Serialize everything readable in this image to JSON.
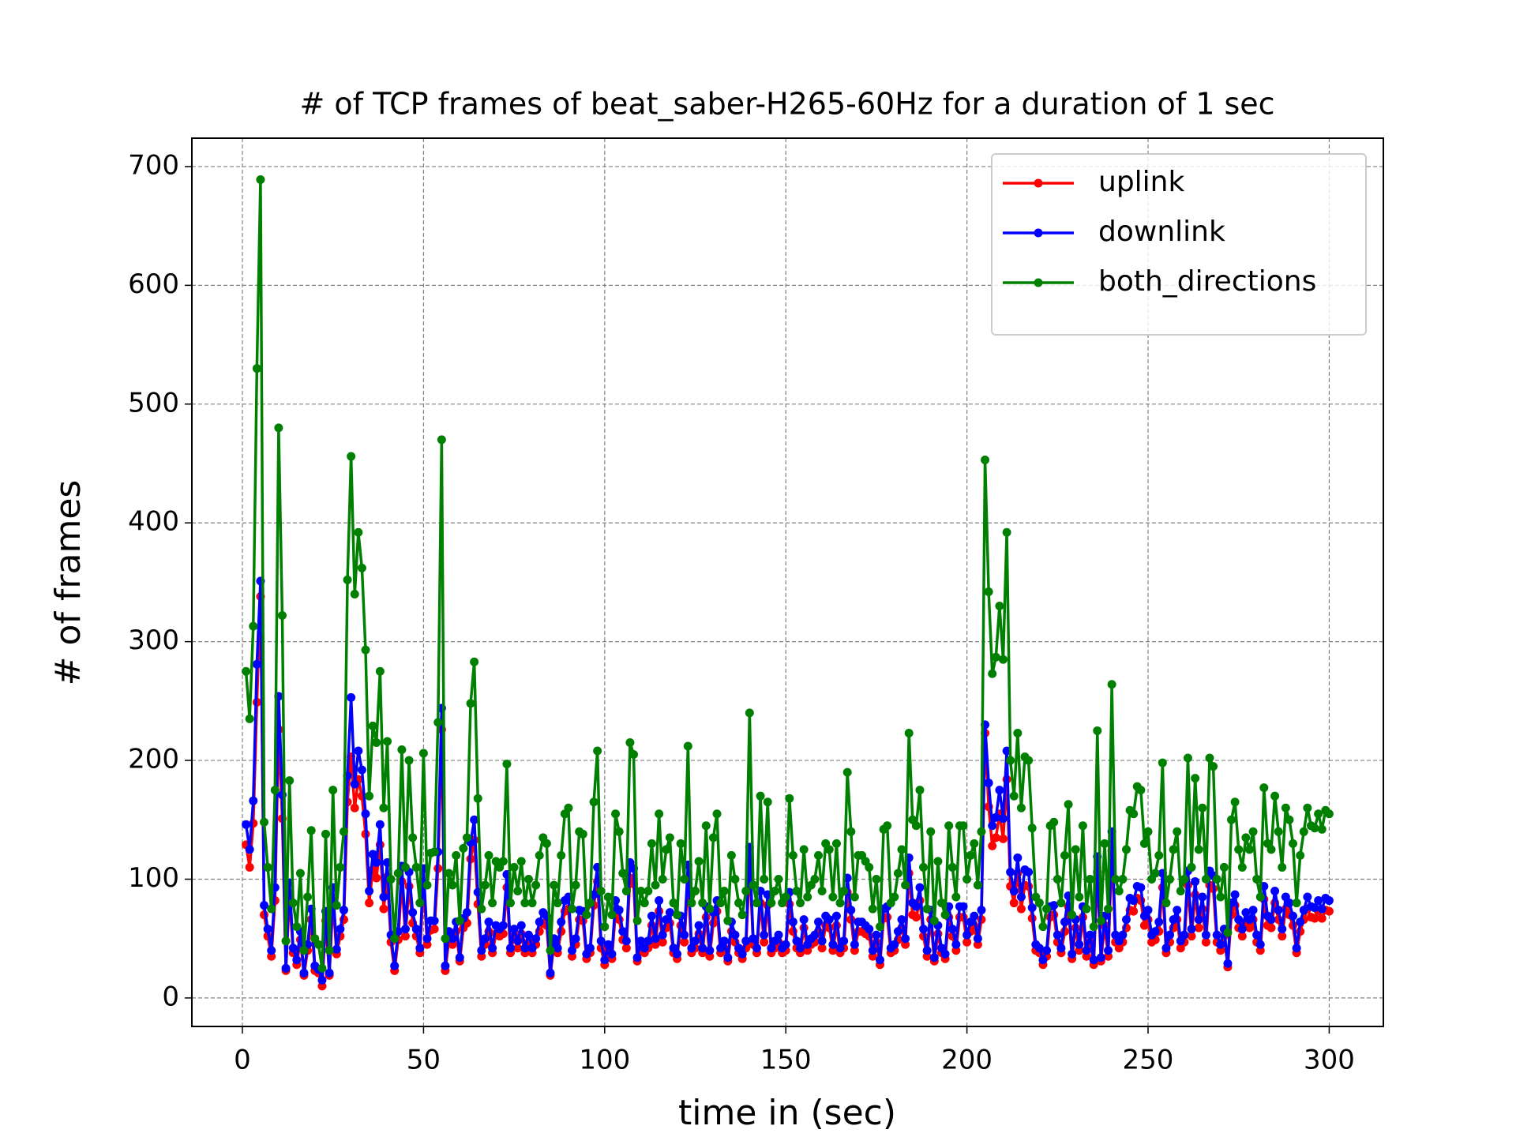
{
  "chart_data": {
    "type": "line",
    "title": "# of TCP frames of beat_saber-H265-60Hz for a duration of 1 sec",
    "xlabel": "time in (sec)",
    "ylabel": "# of frames",
    "x": [
      1,
      2,
      3,
      4,
      5,
      6,
      7,
      8,
      9,
      10,
      11,
      12,
      13,
      14,
      15,
      16,
      17,
      18,
      19,
      20,
      21,
      22,
      23,
      24,
      25,
      26,
      27,
      28,
      29,
      30,
      31,
      32,
      33,
      34,
      35,
      36,
      37,
      38,
      39,
      40,
      41,
      42,
      43,
      44,
      45,
      46,
      47,
      48,
      49,
      50,
      51,
      52,
      53,
      54,
      55,
      56,
      57,
      58,
      59,
      60,
      61,
      62,
      63,
      64,
      65,
      66,
      67,
      68,
      69,
      70,
      71,
      72,
      73,
      74,
      75,
      76,
      77,
      78,
      79,
      80,
      81,
      82,
      83,
      84,
      85,
      86,
      87,
      88,
      89,
      90,
      91,
      92,
      93,
      94,
      95,
      96,
      97,
      98,
      99,
      100,
      101,
      102,
      103,
      104,
      105,
      106,
      107,
      108,
      109,
      110,
      111,
      112,
      113,
      114,
      115,
      116,
      117,
      118,
      119,
      120,
      121,
      122,
      123,
      124,
      125,
      126,
      127,
      128,
      129,
      130,
      131,
      132,
      133,
      134,
      135,
      136,
      137,
      138,
      139,
      140,
      141,
      142,
      143,
      144,
      145,
      146,
      147,
      148,
      149,
      150,
      151,
      152,
      153,
      154,
      155,
      156,
      157,
      158,
      159,
      160,
      161,
      162,
      163,
      164,
      165,
      166,
      167,
      168,
      169,
      170,
      171,
      172,
      173,
      174,
      175,
      176,
      177,
      178,
      179,
      180,
      181,
      182,
      183,
      184,
      185,
      186,
      187,
      188,
      189,
      190,
      191,
      192,
      193,
      194,
      195,
      196,
      197,
      198,
      199,
      200,
      201,
      202,
      203,
      204,
      205,
      206,
      207,
      208,
      209,
      210,
      211,
      212,
      213,
      214,
      215,
      216,
      217,
      218,
      219,
      220,
      221,
      222,
      223,
      224,
      225,
      226,
      227,
      228,
      229,
      230,
      231,
      232,
      233,
      234,
      235,
      236,
      237,
      238,
      239,
      240,
      241,
      242,
      243,
      244,
      245,
      246,
      247,
      248,
      249,
      250,
      251,
      252,
      253,
      254,
      255,
      256,
      257,
      258,
      259,
      260,
      261,
      262,
      263,
      264,
      265,
      266,
      267,
      268,
      269,
      270,
      271,
      272,
      273,
      274,
      275,
      276,
      277,
      278,
      279,
      280,
      281,
      282,
      283,
      284,
      285,
      286,
      287,
      288,
      289,
      290,
      291,
      292,
      293,
      294,
      295,
      296,
      297,
      298,
      299,
      300
    ],
    "series": [
      {
        "name": "uplink",
        "color": "#ff0000",
        "values": [
          129,
          110,
          147,
          249,
          338,
          70,
          52,
          35,
          82,
          226,
          151,
          23,
          86,
          38,
          28,
          49,
          19,
          40,
          66,
          23,
          21,
          10,
          65,
          19,
          82,
          37,
          52,
          66,
          165,
          203,
          160,
          184,
          170,
          138,
          80,
          108,
          101,
          129,
          75,
          102,
          47,
          23,
          49,
          98,
          52,
          94,
          63,
          52,
          38,
          97,
          45,
          57,
          58,
          109,
          226,
          23,
          49,
          45,
          56,
          31,
          59,
          63,
          117,
          133,
          79,
          35,
          45,
          56,
          38,
          54,
          52,
          54,
          93,
          38,
          52,
          42,
          54,
          38,
          47,
          38,
          45,
          56,
          63,
          61,
          19,
          45,
          38,
          56,
          73,
          75,
          35,
          45,
          66,
          65,
          33,
          38,
          78,
          98,
          42,
          28,
          40,
          33,
          73,
          66,
          49,
          42,
          101,
          96,
          31,
          42,
          38,
          42,
          61,
          45,
          73,
          47,
          59,
          63,
          38,
          33,
          61,
          47,
          100,
          38,
          42,
          54,
          38,
          68,
          35,
          63,
          73,
          38,
          42,
          31,
          56,
          47,
          38,
          33,
          42,
          113,
          45,
          38,
          80,
          47,
          78,
          38,
          42,
          47,
          38,
          40,
          79,
          56,
          42,
          38,
          59,
          40,
          45,
          47,
          56,
          42,
          61,
          59,
          40,
          61,
          38,
          42,
          89,
          66,
          40,
          56,
          56,
          54,
          52,
          35,
          47,
          28,
          67,
          68,
          38,
          40,
          49,
          59,
          45,
          105,
          70,
          68,
          82,
          52,
          35,
          66,
          31,
          54,
          38,
          33,
          68,
          52,
          40,
          68,
          68,
          47,
          56,
          61,
          45,
          66,
          223,
          161,
          128,
          135,
          155,
          134,
          184,
          94,
          80,
          105,
          75,
          95,
          94,
          67,
          40,
          38,
          28,
          35,
          68,
          70,
          47,
          38,
          56,
          77,
          33,
          59,
          40,
          68,
          35,
          47,
          28,
          106,
          31,
          61,
          35,
          124,
          47,
          42,
          47,
          59,
          74,
          73,
          84,
          82,
          61,
          66,
          47,
          49,
          56,
          93,
          38,
          47,
          59,
          66,
          42,
          47,
          95,
          52,
          87,
          59,
          75,
          47,
          95,
          92,
          47,
          40,
          52,
          26,
          70,
          78,
          59,
          52,
          63,
          59,
          66,
          47,
          40,
          83,
          61,
          59,
          80,
          66,
          52,
          75,
          70,
          61,
          38,
          56,
          66,
          75,
          68,
          67,
          73,
          67,
          74,
          73
        ]
      },
      {
        "name": "downlink",
        "color": "#0000ff",
        "values": [
          146,
          125,
          166,
          281,
          351,
          78,
          58,
          40,
          93,
          254,
          171,
          25,
          97,
          42,
          32,
          56,
          21,
          45,
          75,
          27,
          24,
          15,
          73,
          21,
          93,
          41,
          58,
          74,
          187,
          253,
          180,
          208,
          192,
          155,
          90,
          121,
          114,
          146,
          85,
          114,
          53,
          27,
          56,
          111,
          58,
          106,
          72,
          58,
          42,
          109,
          50,
          65,
          65,
          123,
          244,
          27,
          56,
          50,
          64,
          34,
          67,
          72,
          131,
          150,
          89,
          40,
          50,
          64,
          42,
          61,
          58,
          61,
          104,
          42,
          58,
          48,
          61,
          42,
          53,
          42,
          50,
          64,
          72,
          69,
          21,
          50,
          42,
          64,
          82,
          85,
          40,
          50,
          74,
          73,
          37,
          42,
          87,
          110,
          48,
          32,
          45,
          37,
          82,
          74,
          56,
          48,
          114,
          109,
          34,
          48,
          42,
          48,
          69,
          50,
          82,
          53,
          66,
          72,
          42,
          37,
          69,
          53,
          112,
          42,
          48,
          61,
          42,
          77,
          40,
          72,
          82,
          42,
          48,
          34,
          64,
          53,
          42,
          37,
          48,
          127,
          50,
          42,
          90,
          53,
          87,
          42,
          48,
          53,
          42,
          45,
          89,
          64,
          48,
          42,
          66,
          45,
          50,
          53,
          64,
          48,
          69,
          66,
          45,
          69,
          42,
          48,
          101,
          74,
          45,
          64,
          64,
          61,
          58,
          40,
          53,
          32,
          75,
          77,
          42,
          45,
          56,
          66,
          50,
          118,
          80,
          77,
          93,
          58,
          40,
          74,
          34,
          61,
          42,
          37,
          77,
          58,
          45,
          77,
          77,
          53,
          64,
          69,
          50,
          74,
          230,
          181,
          145,
          152,
          175,
          151,
          208,
          106,
          90,
          118,
          85,
          108,
          106,
          76,
          45,
          42,
          32,
          40,
          77,
          78,
          53,
          42,
          64,
          86,
          37,
          66,
          45,
          77,
          40,
          53,
          32,
          119,
          34,
          69,
          40,
          140,
          53,
          48,
          53,
          66,
          84,
          82,
          94,
          93,
          69,
          74,
          53,
          56,
          64,
          105,
          42,
          53,
          66,
          74,
          48,
          53,
          107,
          58,
          98,
          66,
          85,
          53,
          107,
          103,
          53,
          45,
          58,
          29,
          80,
          87,
          66,
          58,
          72,
          66,
          74,
          53,
          45,
          94,
          69,
          66,
          90,
          74,
          58,
          85,
          80,
          69,
          42,
          64,
          74,
          85,
          77,
          76,
          82,
          75,
          84,
          82
        ]
      },
      {
        "name": "both_directions",
        "color": "#008000",
        "values": [
          275,
          235,
          313,
          530,
          689,
          148,
          110,
          75,
          175,
          480,
          322,
          48,
          183,
          80,
          60,
          105,
          40,
          85,
          141,
          50,
          45,
          25,
          138,
          40,
          175,
          78,
          110,
          140,
          352,
          456,
          340,
          392,
          362,
          293,
          170,
          229,
          215,
          275,
          160,
          216,
          100,
          50,
          105,
          209,
          110,
          200,
          135,
          110,
          80,
          206,
          95,
          122,
          123,
          232,
          470,
          50,
          105,
          95,
          120,
          65,
          126,
          135,
          248,
          283,
          168,
          75,
          95,
          120,
          80,
          115,
          110,
          115,
          197,
          80,
          110,
          90,
          115,
          80,
          100,
          80,
          95,
          120,
          135,
          130,
          40,
          95,
          80,
          120,
          155,
          160,
          75,
          95,
          140,
          138,
          70,
          80,
          165,
          208,
          90,
          60,
          85,
          70,
          155,
          140,
          105,
          90,
          215,
          205,
          65,
          90,
          80,
          90,
          130,
          95,
          155,
          100,
          125,
          135,
          80,
          70,
          130,
          100,
          212,
          80,
          90,
          115,
          80,
          145,
          75,
          135,
          155,
          80,
          90,
          65,
          120,
          100,
          80,
          70,
          90,
          240,
          95,
          80,
          170,
          100,
          165,
          80,
          90,
          100,
          80,
          85,
          168,
          120,
          90,
          80,
          125,
          85,
          95,
          100,
          120,
          90,
          130,
          125,
          85,
          130,
          80,
          90,
          190,
          140,
          85,
          120,
          120,
          115,
          110,
          75,
          100,
          60,
          142,
          145,
          80,
          85,
          105,
          125,
          95,
          223,
          150,
          145,
          175,
          110,
          75,
          140,
          65,
          115,
          80,
          70,
          145,
          110,
          85,
          145,
          145,
          100,
          120,
          130,
          95,
          140,
          453,
          342,
          273,
          287,
          330,
          285,
          392,
          200,
          170,
          223,
          160,
          203,
          200,
          143,
          85,
          80,
          60,
          75,
          145,
          148,
          100,
          80,
          120,
          163,
          70,
          125,
          85,
          145,
          75,
          100,
          60,
          225,
          65,
          130,
          75,
          264,
          100,
          90,
          100,
          125,
          158,
          155,
          178,
          175,
          130,
          140,
          100,
          105,
          120,
          198,
          80,
          100,
          125,
          140,
          90,
          100,
          202,
          110,
          185,
          125,
          160,
          100,
          202,
          195,
          100,
          85,
          110,
          55,
          150,
          165,
          125,
          110,
          135,
          125,
          140,
          100,
          85,
          177,
          130,
          125,
          170,
          140,
          110,
          160,
          150,
          130,
          80,
          120,
          140,
          160,
          145,
          143,
          155,
          142,
          158,
          155
        ]
      }
    ],
    "xlim": [
      -13.95,
      314.95
    ],
    "ylim": [
      -24,
      723.9
    ],
    "xticks": [
      0,
      50,
      100,
      150,
      200,
      250,
      300
    ],
    "yticks": [
      0,
      100,
      200,
      300,
      400,
      500,
      600,
      700
    ],
    "grid": true,
    "legend": "upper right"
  }
}
